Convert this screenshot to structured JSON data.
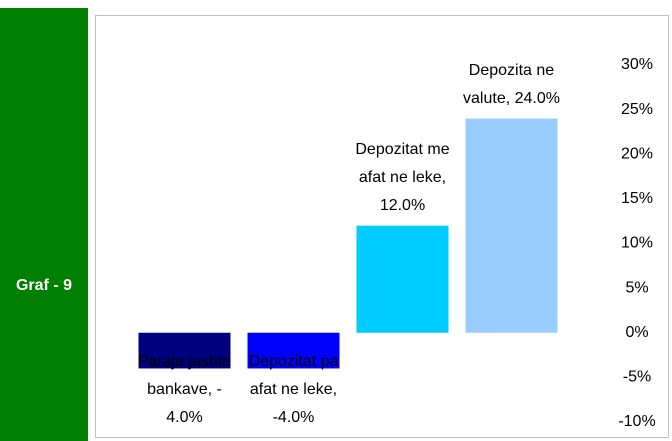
{
  "sidebar": {
    "label": "Graf - 9"
  },
  "chart_data": {
    "type": "bar",
    "categories": [
      "Paraja jashte bankave",
      "Depozitat pa afat ne leke",
      "Depozitat me afat ne leke",
      "Depozita ne valute"
    ],
    "values": [
      -4,
      -4,
      12,
      24
    ],
    "value_labels": [
      "Paraja jashte bankave, - 4.0%",
      "Depozitat pa afat ne leke, -4.0%",
      "Depozitat me afat ne leke, 12.0%",
      "Depozita ne valute, 24.0%"
    ],
    "colors": [
      "#000080",
      "#0000ff",
      "#00ccff",
      "#99ccff"
    ],
    "ylim": [
      -10,
      30
    ],
    "yticks": [
      {
        "value": -10,
        "label": "-10%"
      },
      {
        "value": -5,
        "label": "-5%"
      },
      {
        "value": 0,
        "label": "0%"
      },
      {
        "value": 5,
        "label": "5%"
      },
      {
        "value": 10,
        "label": "10%"
      },
      {
        "value": 15,
        "label": "15%"
      },
      {
        "value": 20,
        "label": "20%"
      },
      {
        "value": 25,
        "label": "25%"
      },
      {
        "value": 30,
        "label": "30%"
      }
    ],
    "grid": false
  }
}
